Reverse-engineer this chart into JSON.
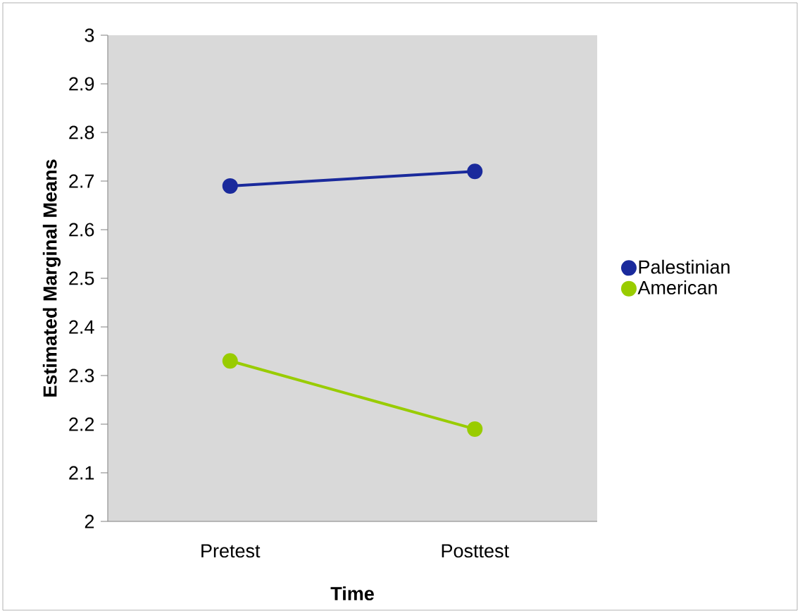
{
  "chart_data": {
    "type": "line",
    "xlabel": "Time",
    "ylabel": "Estimated Marginal Means",
    "categories": [
      "Pretest",
      "Posttest"
    ],
    "series": [
      {
        "name": "Palestinian",
        "color": "#1a2a9c",
        "values": [
          2.69,
          2.72
        ]
      },
      {
        "name": "American",
        "color": "#99cc00",
        "values": [
          2.33,
          2.19
        ]
      }
    ],
    "ylim": [
      2,
      3
    ],
    "yticks": [
      2,
      2.1,
      2.2,
      2.3,
      2.4,
      2.5,
      2.6,
      2.7,
      2.8,
      2.9,
      3
    ],
    "legend": "right",
    "marker": "circle",
    "line_style": "solid"
  }
}
